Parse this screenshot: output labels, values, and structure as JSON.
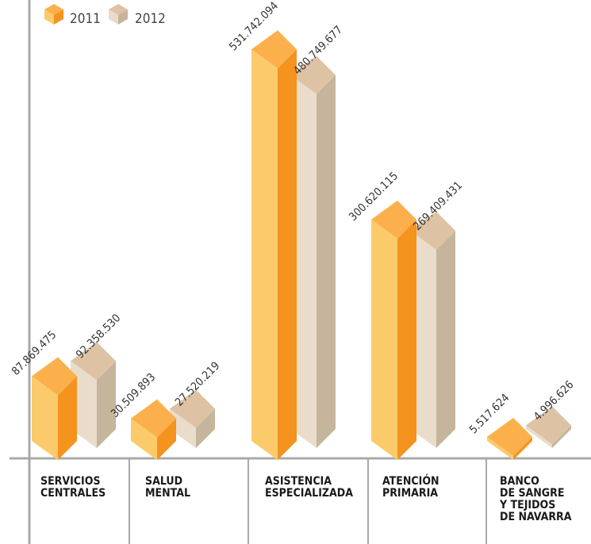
{
  "chart_data": {
    "type": "bar",
    "title": "",
    "xlabel": "",
    "ylabel": "",
    "ylim": [
      0,
      560000000
    ],
    "categories": [
      [
        "SERVICIOS",
        "CENTRALES"
      ],
      [
        "SALUD",
        "MENTAL"
      ],
      [
        "ASISTENCIA",
        "ESPECIALIZADA"
      ],
      [
        "ATENCIÓN",
        "PRIMARIA"
      ],
      [
        "BANCO",
        "DE SANGRE",
        "Y TEJIDOS",
        "DE NAVARRA"
      ]
    ],
    "series": [
      {
        "name": "2011",
        "values": [
          87869475,
          30509893,
          531742094,
          300620115,
          5517624
        ],
        "labels": [
          "87.869.475",
          "30.509.893",
          "531.742.094",
          "300.620.115",
          "5.517.624"
        ]
      },
      {
        "name": "2012",
        "values": [
          92358530,
          27520219,
          480749677,
          269409431,
          4996626
        ],
        "labels": [
          "92.358.530",
          "27.520.219",
          "480.749.677",
          "269.409.431",
          "4.996.626"
        ]
      }
    ],
    "legend": {
      "position": "top-left",
      "entries": [
        "2011",
        "2012"
      ]
    },
    "grid": false
  },
  "colors": {
    "2011": {
      "front": "#fbcb6b",
      "side": "#f4931e",
      "top": "#fbb04c"
    },
    "2012": {
      "front": "#e9dccb",
      "side": "#c5b59c",
      "top": "#ddc2a4"
    },
    "axis": "#a9a9a9"
  }
}
